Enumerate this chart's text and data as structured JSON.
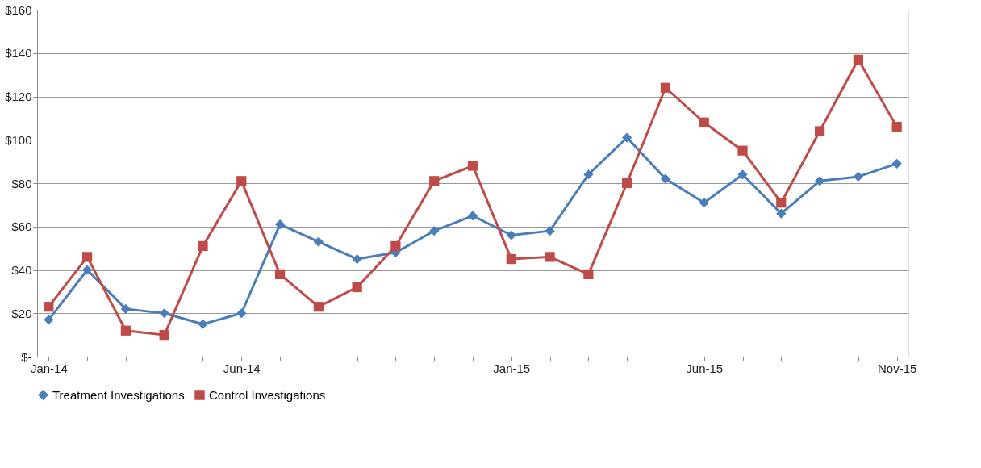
{
  "chart_data": {
    "type": "line",
    "categories": [
      "Jan-14",
      null,
      null,
      null,
      null,
      "Jun-14",
      null,
      null,
      null,
      null,
      null,
      null,
      "Jan-15",
      null,
      null,
      null,
      null,
      "Jun-15",
      null,
      null,
      null,
      null,
      "Nov-15"
    ],
    "series": [
      {
        "name": "Treatment Investigations",
        "color": "#4a7ebb",
        "marker": "diamond",
        "values": [
          17,
          40,
          22,
          20,
          15,
          20,
          61,
          53,
          45,
          48,
          58,
          65,
          56,
          58,
          84,
          101,
          82,
          71,
          84,
          66,
          81,
          83,
          89
        ]
      },
      {
        "name": "Control Investigations",
        "color": "#be4b48",
        "marker": "square",
        "values": [
          23,
          46,
          12,
          10,
          51,
          81,
          38,
          23,
          32,
          51,
          81,
          88,
          45,
          46,
          38,
          80,
          124,
          108,
          95,
          71,
          104,
          137,
          106
        ]
      }
    ],
    "ylim": [
      0,
      160
    ],
    "yticks": [
      {
        "value": 0,
        "label": "$-"
      },
      {
        "value": 20,
        "label": "$20"
      },
      {
        "value": 40,
        "label": "$40"
      },
      {
        "value": 60,
        "label": "$60"
      },
      {
        "value": 80,
        "label": "$80"
      },
      {
        "value": 100,
        "label": "$100"
      },
      {
        "value": 120,
        "label": "$120"
      },
      {
        "value": 140,
        "label": "$140"
      },
      {
        "value": 160,
        "label": "$160"
      }
    ],
    "grid": "y",
    "legend": "bottom",
    "line_style": "solid"
  }
}
